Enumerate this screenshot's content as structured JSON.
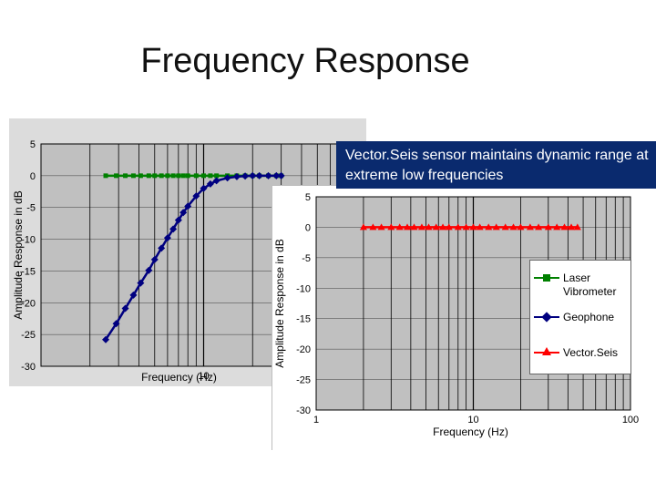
{
  "slide": {
    "title": "Frequency Response",
    "callout": "Vector.Seis sensor maintains dynamic range at extreme low frequencies"
  },
  "colors": {
    "laser": "#008000",
    "geophone": "#000080",
    "vectorseis": "#ff0000",
    "callout_bg": "#0a2a6e"
  },
  "chart_data": [
    {
      "type": "line",
      "scale_x": "log",
      "xlim": [
        1,
        100
      ],
      "ylim": [
        -30,
        5
      ],
      "xlabel": "Frequency (Hz)",
      "ylabel": "Amplitude Response in dB",
      "x_tick_labels": [
        "10"
      ],
      "y_tick_labels": [
        "5",
        "0",
        "-5",
        "-10",
        "-15",
        "-20",
        "-25",
        "-30"
      ],
      "grid": true,
      "series": [
        {
          "name": "Laser Vibrometer",
          "color": "#008000",
          "marker": "square",
          "x": [
            2.5,
            2.9,
            3.3,
            3.7,
            4.1,
            4.6,
            5.0,
            5.5,
            6.0,
            6.5,
            7.0,
            7.5,
            8.0,
            9.0,
            10,
            11,
            12,
            14,
            16,
            18,
            20,
            22,
            25,
            28,
            30
          ],
          "y": [
            0,
            0,
            0,
            0,
            0,
            0,
            0,
            0,
            0,
            0,
            0,
            0,
            0,
            0,
            0,
            0,
            0,
            0,
            0,
            0,
            0,
            0,
            0,
            0,
            0
          ]
        },
        {
          "name": "Geophone",
          "color": "#000080",
          "marker": "diamond",
          "x": [
            2.5,
            2.9,
            3.3,
            3.7,
            4.1,
            4.6,
            5.0,
            5.5,
            6.0,
            6.5,
            7.0,
            7.5,
            8.0,
            9.0,
            10,
            11,
            12,
            14,
            16,
            18,
            20,
            22,
            25,
            28,
            30
          ],
          "y": [
            -25.8,
            -23.3,
            -20.9,
            -18.8,
            -16.9,
            -14.9,
            -13.2,
            -11.4,
            -9.8,
            -8.4,
            -7.0,
            -5.8,
            -4.8,
            -3.2,
            -2.0,
            -1.3,
            -0.8,
            -0.35,
            -0.15,
            -0.05,
            0,
            0,
            0,
            0,
            0
          ]
        }
      ]
    },
    {
      "type": "line",
      "scale_x": "log",
      "xlim": [
        1,
        100
      ],
      "ylim": [
        -30,
        5
      ],
      "xlabel": "Frequency (Hz)",
      "ylabel": "Amplitude Response in dB",
      "x_tick_labels": [
        "1",
        "10",
        "100"
      ],
      "y_tick_labels": [
        "5",
        "0",
        "-5",
        "-10",
        "-15",
        "-20",
        "-25",
        "-30"
      ],
      "grid": true,
      "legend": "right",
      "series": [
        {
          "name": "Vector.Seis",
          "color": "#ff0000",
          "marker": "triangle",
          "x": [
            2.0,
            2.3,
            2.6,
            3.0,
            3.4,
            3.8,
            4.2,
            4.7,
            5.2,
            5.8,
            6.4,
            7.0,
            8.0,
            9.0,
            10,
            11,
            12.5,
            14,
            16,
            18,
            20,
            23,
            26,
            30,
            34,
            38,
            42,
            46
          ],
          "y": [
            0,
            0,
            0,
            0,
            0,
            0,
            0,
            0,
            0,
            0,
            0,
            0,
            0,
            0,
            0,
            0,
            0,
            0,
            0,
            0,
            0,
            0,
            0,
            0,
            0,
            0,
            0,
            0
          ]
        }
      ]
    }
  ],
  "legend": {
    "items": [
      {
        "label": "Laser Vibrometer",
        "color": "#008000"
      },
      {
        "label": "Geophone",
        "color": "#000080"
      },
      {
        "label": "Vector.Seis",
        "color": "#ff0000"
      }
    ]
  }
}
